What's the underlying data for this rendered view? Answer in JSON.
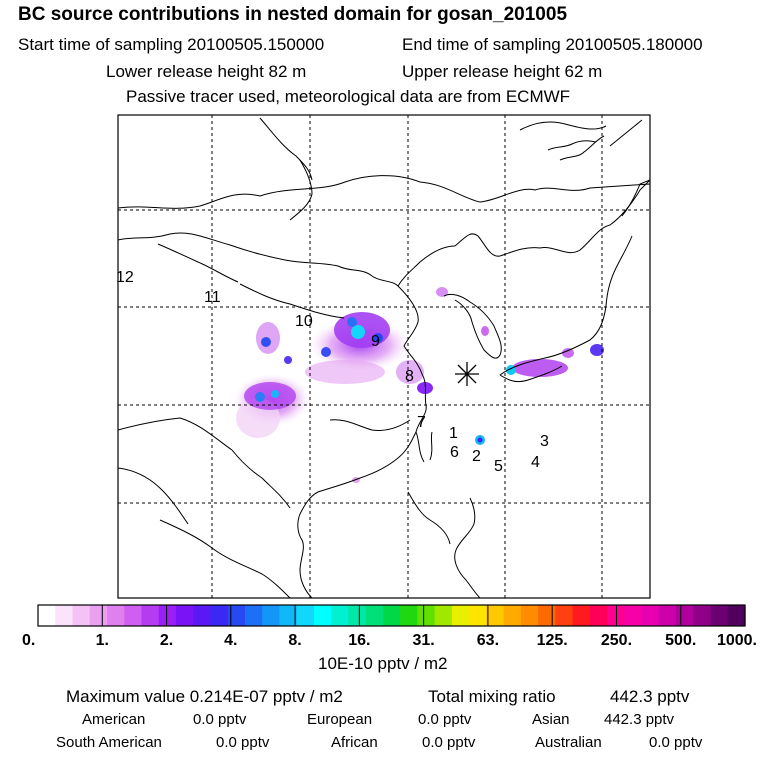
{
  "header": {
    "title": "BC  source contributions in nested domain for gosan_201005",
    "start_label": "Start time of sampling 20100505.150000",
    "end_label": "End time of sampling 20100505.180000",
    "lower_label": "Lower release height   82 m",
    "upper_label": "Upper release height   62 m",
    "note": "Passive tracer used, meteorological data are from ECMWF"
  },
  "map": {
    "trajectory_labels": [
      "1",
      "2",
      "3",
      "4",
      "5",
      "6",
      "7",
      "8",
      "9",
      "10",
      "11",
      "12"
    ],
    "receptor_marker": "asterisk"
  },
  "colorbar": {
    "tick_labels": [
      "0.",
      "1.",
      "2.",
      "4.",
      "8.",
      "16.",
      "31.",
      "63.",
      "125.",
      "250.",
      "500.",
      "1000."
    ],
    "unit_label": "10E-10 pptv / m2",
    "colors": [
      "#ffffff",
      "#fbe3fb",
      "#f5c2f5",
      "#eaa0f0",
      "#df80ee",
      "#cf5ff0",
      "#b63cf2",
      "#9a1ef5",
      "#7a14f6",
      "#5a18f5",
      "#3a28f4",
      "#2848f4",
      "#1c70f6",
      "#1496f8",
      "#10b8fa",
      "#10d8fc",
      "#00ffff",
      "#00f0d0",
      "#00e8a8",
      "#00e078",
      "#00d848",
      "#20d810",
      "#60e000",
      "#a0e800",
      "#e8f000",
      "#ffe400",
      "#ffc800",
      "#ffaa00",
      "#ff8c00",
      "#ff6a00",
      "#ff4010",
      "#ff1a20",
      "#ff0058",
      "#ff0090",
      "#f800a8",
      "#e600b0",
      "#cc00a8",
      "#b0009c",
      "#900088",
      "#6c0070",
      "#50005c"
    ]
  },
  "footer": {
    "max_label": "Maximum value  0.214E-07 pptv / m2",
    "total_label": "Total mixing ratio",
    "total_value": "442.3 pptv",
    "american_label": "American",
    "american_value": "0.0 pptv",
    "european_label": "European",
    "european_value": "0.0 pptv",
    "asian_label": "Asian",
    "asian_value": "442.3 pptv",
    "south_american_label": "South American",
    "south_american_value": "0.0 pptv",
    "african_label": "African",
    "african_value": "0.0 pptv",
    "australian_label": "Australian",
    "australian_value": "0.0 pptv"
  }
}
